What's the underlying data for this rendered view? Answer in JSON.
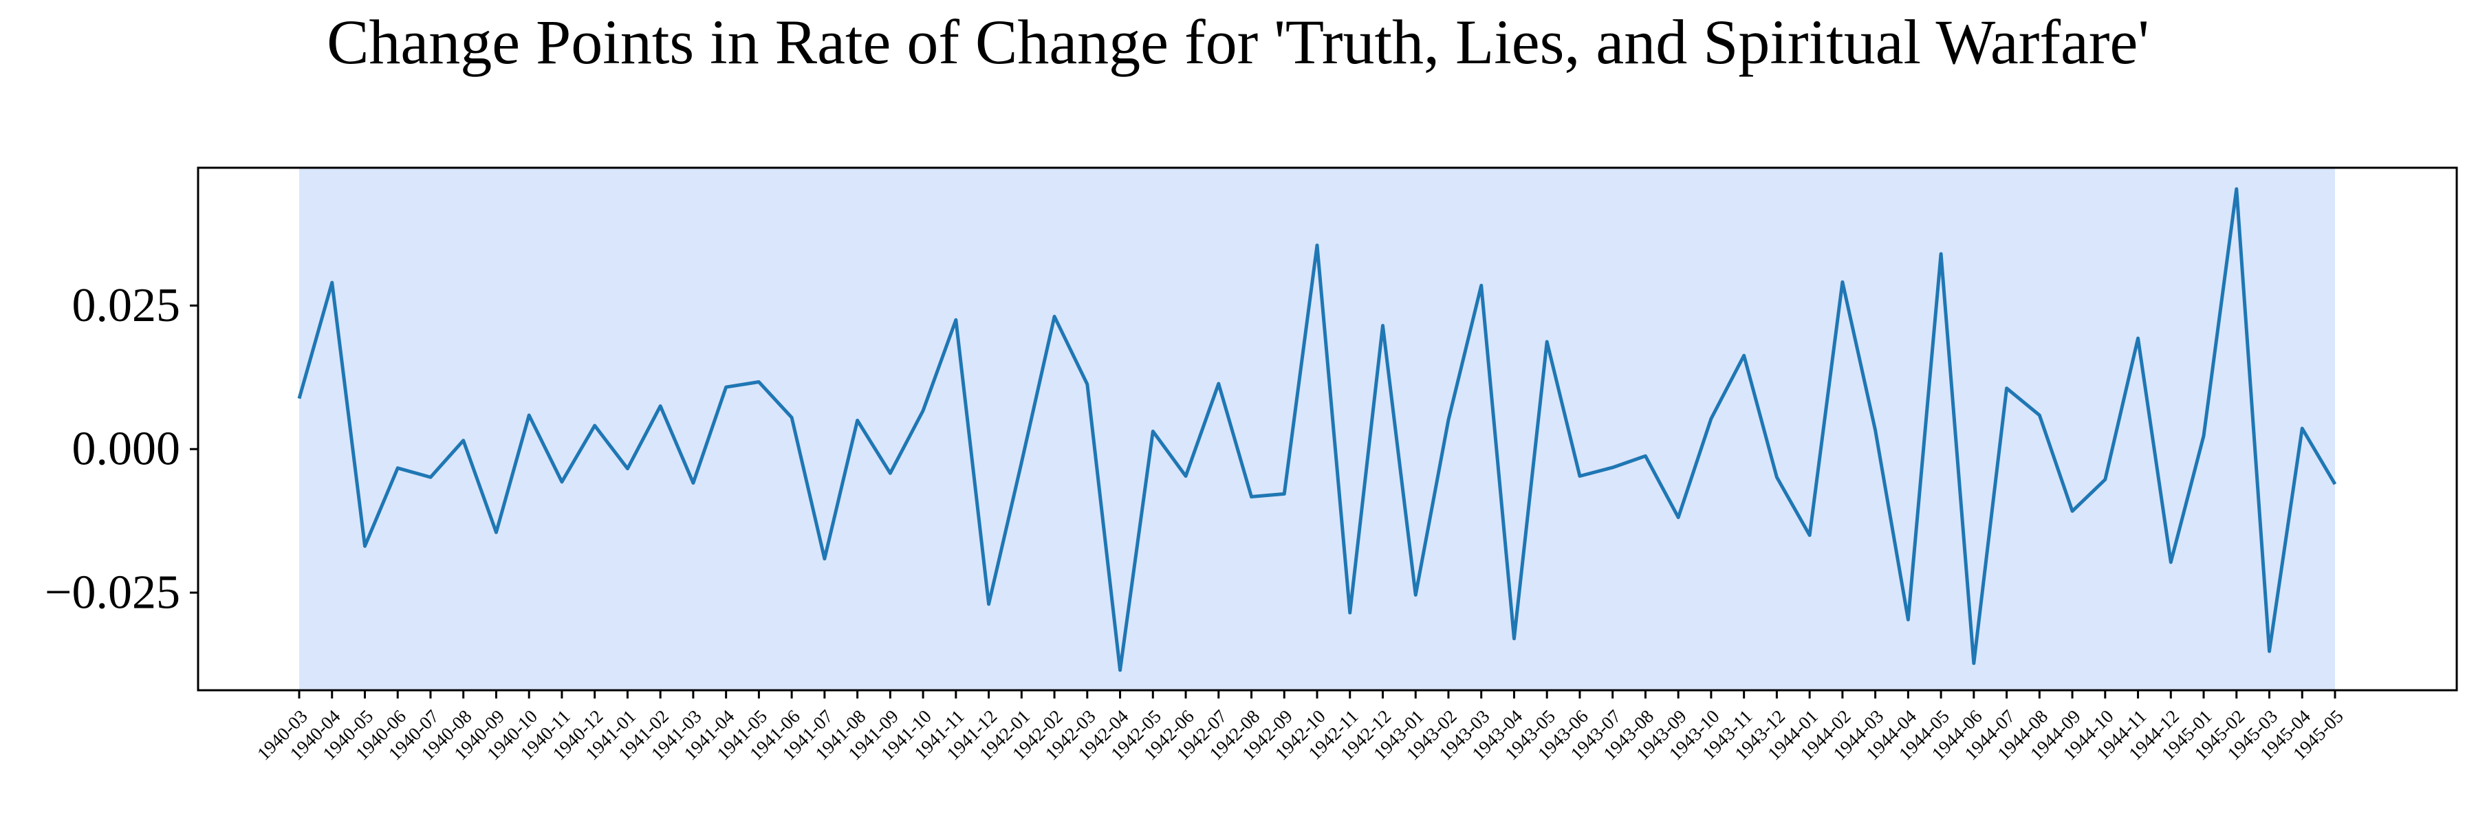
{
  "chart_data": {
    "type": "line",
    "title": "Change Points in Rate of Change for 'Truth, Lies, and Spiritual Warfare'",
    "xlabel": "",
    "ylabel": "",
    "ylim": [
      -0.042,
      0.049
    ],
    "yticks": [
      {
        "value": -0.025,
        "label": "−0.025"
      },
      {
        "value": 0.0,
        "label": "0.000"
      },
      {
        "value": 0.025,
        "label": "0.025"
      }
    ],
    "grid": false,
    "legend": "none",
    "highlight_segment": {
      "from": "1940-03",
      "to": "1945-05",
      "color": "#dae6fb"
    },
    "line_color": "#1f77b4",
    "x": [
      "1940-03",
      "1940-04",
      "1940-05",
      "1940-06",
      "1940-07",
      "1940-08",
      "1940-09",
      "1940-10",
      "1940-11",
      "1940-12",
      "1941-01",
      "1941-02",
      "1941-03",
      "1941-04",
      "1941-05",
      "1941-06",
      "1941-07",
      "1941-08",
      "1941-09",
      "1941-10",
      "1941-11",
      "1941-12",
      "1942-01",
      "1942-02",
      "1942-03",
      "1942-04",
      "1942-05",
      "1942-06",
      "1942-07",
      "1942-08",
      "1942-09",
      "1942-10",
      "1942-11",
      "1942-12",
      "1943-01",
      "1943-02",
      "1943-03",
      "1943-04",
      "1943-05",
      "1943-06",
      "1943-07",
      "1943-08",
      "1943-09",
      "1943-10",
      "1943-11",
      "1943-12",
      "1944-01",
      "1944-02",
      "1944-03",
      "1944-04",
      "1944-05",
      "1944-06",
      "1944-07",
      "1944-08",
      "1944-09",
      "1944-10",
      "1944-11",
      "1944-12",
      "1945-01",
      "1945-02",
      "1945-03",
      "1945-04",
      "1945-05"
    ],
    "series": [
      {
        "values": [
          0.0088,
          0.029,
          -0.0169,
          -0.0033,
          -0.0049,
          0.0015,
          -0.0145,
          0.0059,
          -0.0057,
          0.0041,
          -0.0034,
          0.0075,
          -0.0059,
          0.0108,
          0.0117,
          0.0055,
          -0.0191,
          0.005,
          -0.0042,
          0.0067,
          0.0225,
          -0.027,
          -0.0023,
          0.0231,
          0.0113,
          -0.0385,
          0.0031,
          -0.0047,
          0.0114,
          -0.0083,
          -0.0078,
          0.0355,
          -0.0285,
          0.0215,
          -0.0254,
          0.0051,
          0.0285,
          -0.033,
          0.0187,
          -0.0047,
          -0.0032,
          -0.0012,
          -0.0119,
          0.0053,
          0.0163,
          -0.0049,
          -0.015,
          0.0291,
          0.0033,
          -0.0297,
          0.034,
          -0.0373,
          0.0106,
          0.0059,
          -0.0108,
          -0.0053,
          0.0193,
          -0.0197,
          0.0023,
          0.0453,
          -0.0352,
          0.0036,
          -0.0061
        ]
      }
    ]
  }
}
